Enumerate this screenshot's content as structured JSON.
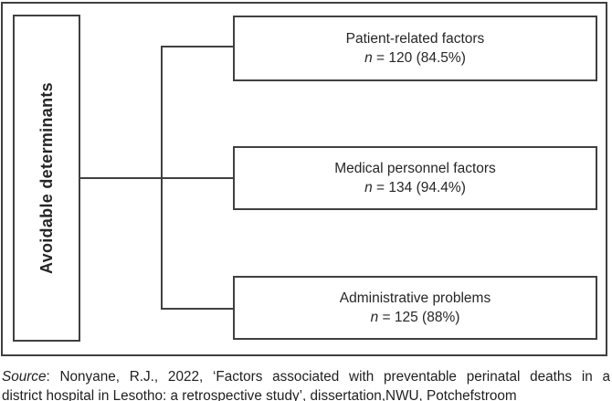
{
  "figure": {
    "root_label": "Avoidable determinants",
    "branches": [
      {
        "title": "Patient-related factors",
        "n_symbol": "n",
        "n_value": " = 120 (84.5%)"
      },
      {
        "title": "Medical personnel factors",
        "n_symbol": "n",
        "n_value": " = 134 (94.4%)"
      },
      {
        "title": "Administrative problems",
        "n_symbol": "n",
        "n_value": " = 125 (88%)"
      }
    ],
    "colors": {
      "line": "#404040",
      "text": "#262626",
      "background": "#ffffff"
    }
  },
  "caption": {
    "source_label": "Source",
    "line1_rest": ": Nonyane, R.J., 2022, ‘Factors associated with preventable perinatal deaths in a",
    "line2": "district hospital in Lesotho: a retrospective study’, dissertation,NWU, Potchefstroom"
  }
}
